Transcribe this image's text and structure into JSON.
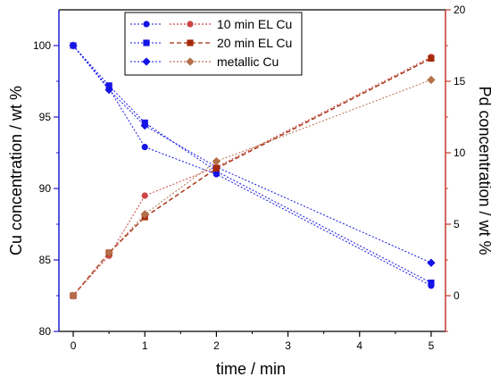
{
  "chart_data": {
    "type": "line",
    "x": [
      0,
      0.5,
      1,
      2,
      5
    ],
    "xlabel": "time / min",
    "xlim": [
      -0.2,
      5.2
    ],
    "x_ticks": [
      0,
      1,
      2,
      3,
      4,
      5
    ],
    "y_left": {
      "label": "Cu concentration / wt %",
      "lim": [
        80,
        102.5
      ],
      "ticks": [
        80,
        85,
        90,
        95,
        100
      ],
      "color": "#1f1fcc"
    },
    "y_right": {
      "label": "Pd concentration / wt %",
      "lim": [
        -2.5,
        20
      ],
      "ticks": [
        0,
        5,
        10,
        15,
        20
      ],
      "color": "#c0392b"
    },
    "grid": false,
    "legend_position": "top-center",
    "series": [
      {
        "name": "10 min EL Cu",
        "axis": "left",
        "marker": "circle",
        "color": "#1414e6",
        "dash": "dotted",
        "values": [
          100,
          97.0,
          92.9,
          91.0,
          83.2
        ]
      },
      {
        "name": "20 min EL Cu",
        "axis": "left",
        "marker": "square",
        "color": "#1414e6",
        "dash": "dotted",
        "values": [
          100,
          97.2,
          94.6,
          91.2,
          83.4
        ]
      },
      {
        "name": "metallic Cu",
        "axis": "left",
        "marker": "diamond",
        "color": "#1414e6",
        "dash": "dotted",
        "values": [
          100,
          96.9,
          94.4,
          91.5,
          84.8
        ]
      },
      {
        "name": "",
        "axis": "right",
        "marker": "circle",
        "color": "#cc4444",
        "dash": "dotted",
        "values": [
          0,
          2.8,
          7.0,
          9.0,
          16.7
        ]
      },
      {
        "name": "",
        "axis": "right",
        "marker": "square",
        "color": "#a52a0a",
        "dash": "dashed",
        "values": [
          0,
          3.0,
          5.5,
          8.9,
          16.6
        ]
      },
      {
        "name": "",
        "axis": "right",
        "marker": "diamond",
        "color": "#b5704a",
        "dash": "dotted",
        "values": [
          0,
          3.0,
          5.7,
          9.4,
          15.1
        ]
      }
    ],
    "legend": [
      {
        "label": "10 min EL Cu",
        "marker": "circle"
      },
      {
        "label": "20 min EL Cu",
        "marker": "square"
      },
      {
        "label": "metallic Cu",
        "marker": "diamond"
      }
    ]
  }
}
